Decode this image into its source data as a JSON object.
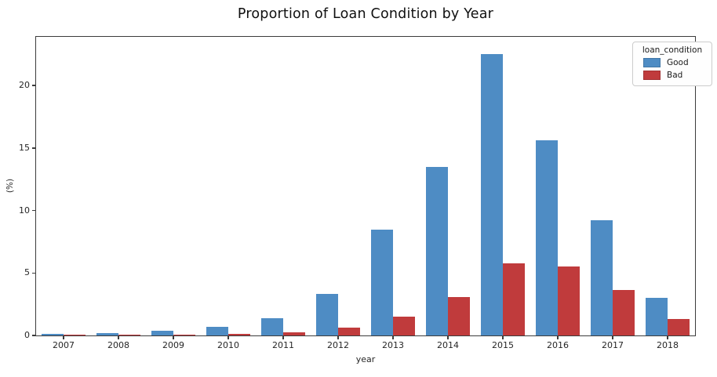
{
  "chart_data": {
    "type": "bar",
    "title": "Proportion of Loan Condition by Year",
    "xlabel": "year",
    "ylabel": "(%)",
    "categories": [
      "2007",
      "2008",
      "2009",
      "2010",
      "2011",
      "2012",
      "2013",
      "2014",
      "2015",
      "2016",
      "2017",
      "2018"
    ],
    "series": [
      {
        "name": "Good",
        "color": "#4e8cc4",
        "values": [
          0.1,
          0.2,
          0.35,
          0.7,
          1.4,
          3.3,
          8.5,
          13.5,
          22.5,
          15.6,
          9.2,
          3.0
        ]
      },
      {
        "name": "Bad",
        "color": "#c03b3c",
        "values": [
          0.02,
          0.06,
          0.08,
          0.15,
          0.25,
          0.6,
          1.5,
          3.1,
          5.8,
          5.55,
          3.65,
          1.3
        ]
      }
    ],
    "ylim": [
      0,
      23.9
    ],
    "yticks": [
      0,
      5,
      10,
      15,
      20
    ],
    "grid": false,
    "legend": {
      "title": "loan_condition",
      "position": "upper right"
    }
  }
}
